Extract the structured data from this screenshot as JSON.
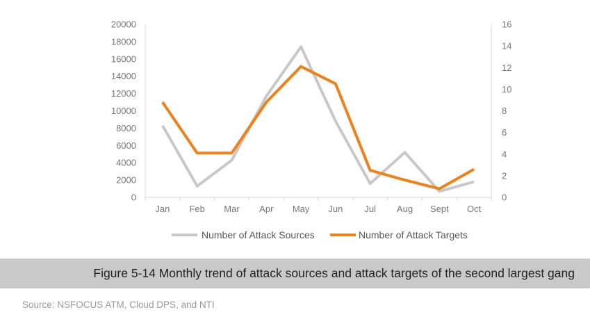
{
  "chart_data": {
    "type": "line",
    "categories": [
      "Jan",
      "Feb",
      "Mar",
      "Apr",
      "May",
      "Jun",
      "Jul",
      "Aug",
      "Sept",
      "Oct"
    ],
    "y_left": {
      "ticks": [
        "0",
        "2000",
        "4000",
        "6000",
        "8000",
        "10000",
        "12000",
        "14000",
        "16000",
        "18000",
        "20000"
      ],
      "ylim": [
        0,
        20000
      ]
    },
    "y_right": {
      "ticks": [
        "0",
        "2",
        "4",
        "6",
        "8",
        "10",
        "12",
        "14",
        "16"
      ],
      "ylim": [
        0,
        16
      ]
    },
    "series": [
      {
        "name": "Number of Attack Sources",
        "axis": "left",
        "color": "#c8c8c8",
        "values": [
          8300,
          1300,
          4300,
          11700,
          17400,
          8800,
          1600,
          5200,
          700,
          1800
        ]
      },
      {
        "name": "Number of Attack Targets",
        "axis": "right",
        "color": "#ef8118",
        "values": [
          8.8,
          4.1,
          4.1,
          8.8,
          12.1,
          10.5,
          2.5,
          1.6,
          0.8,
          2.6
        ]
      }
    ],
    "grid": false,
    "legend": "bottom"
  },
  "caption": "Figure 5-14 Monthly trend of attack sources and attack targets of the second largest gang",
  "source": "Source: NSFOCUS ATM, Cloud DPS, and NTI"
}
